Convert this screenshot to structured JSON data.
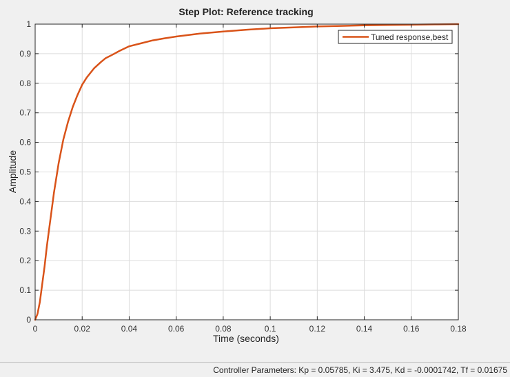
{
  "chart_data": {
    "type": "line",
    "title": "Step Plot: Reference tracking",
    "xlabel": "Time (seconds)",
    "ylabel": "Amplitude",
    "xlim": [
      0,
      0.18
    ],
    "ylim": [
      0,
      1
    ],
    "xticks": [
      0,
      0.02,
      0.04,
      0.06,
      0.08,
      0.1,
      0.12,
      0.14,
      0.16,
      0.18
    ],
    "xtick_labels": [
      "0",
      "0.02",
      "0.04",
      "0.06",
      "0.08",
      "0.1",
      "0.12",
      "0.14",
      "0.16",
      "0.18"
    ],
    "yticks": [
      0,
      0.1,
      0.2,
      0.3,
      0.4,
      0.5,
      0.6,
      0.7,
      0.8,
      0.9,
      1
    ],
    "ytick_labels": [
      "0",
      "0.1",
      "0.2",
      "0.3",
      "0.4",
      "0.5",
      "0.6",
      "0.7",
      "0.8",
      "0.9",
      "1"
    ],
    "grid": true,
    "legend": {
      "position": "top-right",
      "entries": [
        "Tuned response,best"
      ]
    },
    "series": [
      {
        "name": "Tuned response,best",
        "color": "#d95319",
        "x": [
          0,
          0.001,
          0.002,
          0.003,
          0.004,
          0.005,
          0.006,
          0.007,
          0.008,
          0.009,
          0.01,
          0.012,
          0.014,
          0.016,
          0.018,
          0.02,
          0.022,
          0.025,
          0.028,
          0.03,
          0.033,
          0.036,
          0.04,
          0.045,
          0.05,
          0.055,
          0.06,
          0.07,
          0.08,
          0.09,
          0.1,
          0.11,
          0.12,
          0.13,
          0.14,
          0.15,
          0.16,
          0.17,
          0.18
        ],
        "y": [
          0,
          0.02,
          0.06,
          0.12,
          0.18,
          0.25,
          0.31,
          0.37,
          0.43,
          0.48,
          0.53,
          0.61,
          0.67,
          0.72,
          0.76,
          0.795,
          0.82,
          0.85,
          0.872,
          0.885,
          0.897,
          0.91,
          0.925,
          0.935,
          0.945,
          0.952,
          0.958,
          0.968,
          0.975,
          0.981,
          0.986,
          0.989,
          0.992,
          0.994,
          0.996,
          0.997,
          0.998,
          0.999,
          1.0
        ]
      }
    ]
  },
  "status": {
    "text": "Controller Parameters: Kp = 0.05785, Ki = 3.475, Kd = -0.0001742, Tf = 0.01675"
  }
}
